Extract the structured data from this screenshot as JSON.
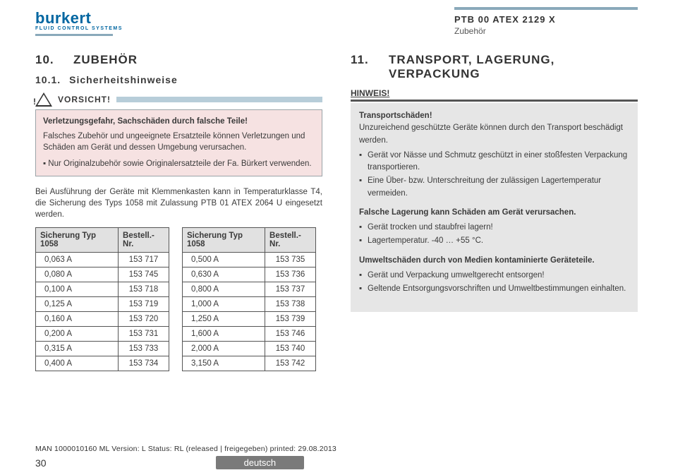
{
  "header": {
    "logo_text": "burkert",
    "logo_sub": "FLUID CONTROL SYSTEMS",
    "doc_code": "PTB 00 ATEX 2129 X",
    "doc_section": "Zubehör"
  },
  "left": {
    "sec_num": "10.",
    "sec_title": "ZUBEHÖR",
    "sub_num": "10.1.",
    "sub_title": "Sicherheitshinweise",
    "vorsicht": "VORSICHT!",
    "warn_bold": "Verletzungsgefahr, Sachschäden durch falsche Teile!",
    "warn_p": "Falsches Zubehör und ungeeignete Ersatzteile können Verletzungen und Schäden am Gerät und dessen Umgebung verursachen.",
    "warn_li": "Nur Originalzubehör sowie Originalersatzteile der Fa. Bürkert verwenden.",
    "para": "Bei Ausführung der Geräte mit Klemmenkasten kann in Temperaturklasse T4, die Sicherung des Typs 1058 mit Zulassung PTB 01 ATEX 2064 U eingesetzt werden.",
    "th1": "Sicherung Typ 1058",
    "th2": "Bestell.-Nr.",
    "table1": [
      [
        "0,063 A",
        "153 717"
      ],
      [
        "0,080 A",
        "153 745"
      ],
      [
        "0,100 A",
        "153 718"
      ],
      [
        "0,125 A",
        "153 719"
      ],
      [
        "0,160 A",
        "153 720"
      ],
      [
        "0,200 A",
        "153 731"
      ],
      [
        "0,315 A",
        "153 733"
      ],
      [
        "0,400 A",
        "153 734"
      ]
    ],
    "table2": [
      [
        "0,500 A",
        "153 735"
      ],
      [
        "0,630 A",
        "153 736"
      ],
      [
        "0,800 A",
        "153 737"
      ],
      [
        "1,000 A",
        "153 738"
      ],
      [
        "1,250 A",
        "153 739"
      ],
      [
        "1,600 A",
        "153 746"
      ],
      [
        "2,000 A",
        "153 740"
      ],
      [
        "3,150 A",
        "153 742"
      ]
    ]
  },
  "right": {
    "sec_num": "11.",
    "sec_title": "TRANSPORT, LAGERUNG, VERPACKUNG",
    "hinweis": "HINWEIS!",
    "b1": "Transportschäden!",
    "p1": "Unzureichend geschützte Geräte können durch den Transport beschädigt werden.",
    "li1a": "Gerät vor Nässe und Schmutz geschützt in einer stoßfesten Verpackung transportieren.",
    "li1b": "Eine Über- bzw. Unterschreitung der zulässigen Lagertemperatur vermeiden.",
    "b2": "Falsche Lagerung kann Schäden am Gerät verursachen.",
    "li2a": "Gerät trocken und staubfrei lagern!",
    "li2b": "Lagertemperatur. -40 … +55 °C.",
    "b3": "Umweltschäden durch von Medien kontaminierte Geräteteile.",
    "li3a": "Gerät und Verpackung umweltgerecht entsorgen!",
    "li3b": "Geltende Entsorgungsvorschriften und Umweltbestimmungen einhalten."
  },
  "footer": {
    "line": "MAN  1000010160  ML  Version: L Status: RL (released | freigegeben)  printed: 29.08.2013",
    "page": "30",
    "lang": "deutsch"
  }
}
